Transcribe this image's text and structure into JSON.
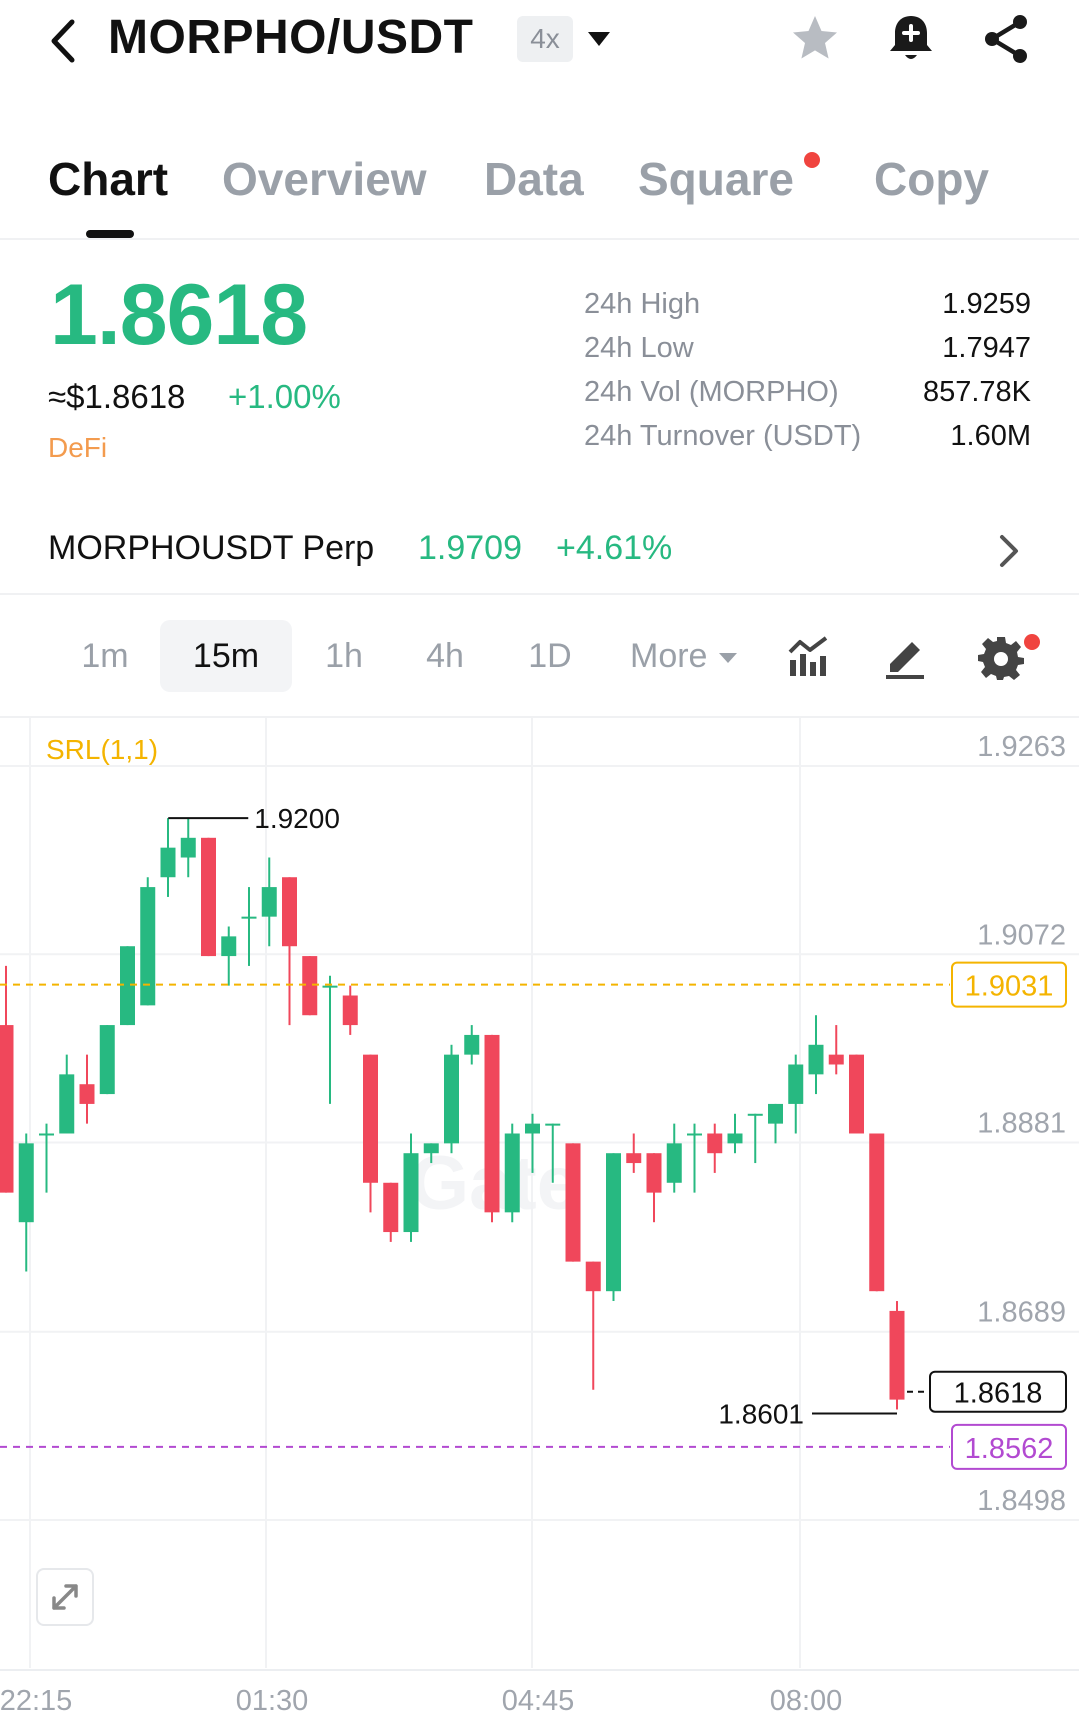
{
  "header": {
    "pair": "MORPHO/USDT",
    "leverage": "4x",
    "icons": [
      "back-chevron-icon",
      "caret-down-icon",
      "star-icon",
      "bell-plus-icon",
      "share-icon"
    ]
  },
  "tabs": [
    {
      "label": "Chart",
      "active": true
    },
    {
      "label": "Overview",
      "active": false
    },
    {
      "label": "Data",
      "active": false
    },
    {
      "label": "Square",
      "active": false,
      "badge": true
    },
    {
      "label": "Copy",
      "active": false
    }
  ],
  "ticker": {
    "last_price": "1.8618",
    "usd_price": "≈$1.8618",
    "change": "+1.00%",
    "tag": "DeFi",
    "up_color": "#27b981",
    "down_color": "#f0475b",
    "stats": [
      {
        "label": "24h High",
        "value": "1.9259"
      },
      {
        "label": "24h Low",
        "value": "1.7947"
      },
      {
        "label": "24h Vol (MORPHO)",
        "value": "857.78K"
      },
      {
        "label": "24h Turnover (USDT)",
        "value": "1.60M"
      }
    ]
  },
  "perp": {
    "name": "MORPHOUSDT Perp",
    "price": "1.9709",
    "change": "+4.61%"
  },
  "intervals": [
    {
      "label": "1m",
      "active": false
    },
    {
      "label": "15m",
      "active": true
    },
    {
      "label": "1h",
      "active": false
    },
    {
      "label": "4h",
      "active": false
    },
    {
      "label": "1D",
      "active": false
    },
    {
      "label": "More",
      "active": false
    }
  ],
  "tools": [
    "indicators-icon",
    "draw-pen-icon",
    "settings-gear-icon"
  ],
  "chart": {
    "indicator": "SRL(1,1)",
    "watermark": "Gate",
    "y_ticks": [
      "1.9263",
      "1.9072",
      "1.8881",
      "1.8689",
      "1.8498"
    ],
    "x_ticks": [
      "22:15",
      "01:30",
      "04:45",
      "08:00"
    ],
    "high_marker": "1.9200",
    "low_marker": "1.8601",
    "srl_line": "1.9031",
    "current_price": "1.8618",
    "srl_line2": "1.8562",
    "srl_color": "#f4b400",
    "srl2_color": "#b24ad1"
  },
  "chart_data": {
    "type": "candlestick",
    "ylim": [
      1.843,
      1.936
    ],
    "y_ticks": [
      1.9263,
      1.9072,
      1.8881,
      1.8689,
      1.8498
    ],
    "x_ticks": [
      "22:15",
      "01:30",
      "04:45",
      "08:00"
    ],
    "candles": [
      {
        "o": 1.899,
        "h": 1.905,
        "l": 1.882,
        "c": 1.882
      },
      {
        "o": 1.879,
        "h": 1.888,
        "l": 1.874,
        "c": 1.887
      },
      {
        "o": 1.888,
        "h": 1.889,
        "l": 1.882,
        "c": 1.888
      },
      {
        "o": 1.888,
        "h": 1.896,
        "l": 1.888,
        "c": 1.894
      },
      {
        "o": 1.893,
        "h": 1.896,
        "l": 1.889,
        "c": 1.891
      },
      {
        "o": 1.892,
        "h": 1.899,
        "l": 1.892,
        "c": 1.899
      },
      {
        "o": 1.899,
        "h": 1.907,
        "l": 1.899,
        "c": 1.907
      },
      {
        "o": 1.901,
        "h": 1.914,
        "l": 1.901,
        "c": 1.913
      },
      {
        "o": 1.914,
        "h": 1.92,
        "l": 1.912,
        "c": 1.917
      },
      {
        "o": 1.916,
        "h": 1.92,
        "l": 1.914,
        "c": 1.918
      },
      {
        "o": 1.918,
        "h": 1.918,
        "l": 1.906,
        "c": 1.906
      },
      {
        "o": 1.906,
        "h": 1.909,
        "l": 1.903,
        "c": 1.908
      },
      {
        "o": 1.91,
        "h": 1.913,
        "l": 1.905,
        "c": 1.91
      },
      {
        "o": 1.91,
        "h": 1.916,
        "l": 1.907,
        "c": 1.913
      },
      {
        "o": 1.914,
        "h": 1.914,
        "l": 1.899,
        "c": 1.907
      },
      {
        "o": 1.906,
        "h": 1.906,
        "l": 1.9,
        "c": 1.9
      },
      {
        "o": 1.903,
        "h": 1.904,
        "l": 1.891,
        "c": 1.903
      },
      {
        "o": 1.902,
        "h": 1.903,
        "l": 1.898,
        "c": 1.899
      },
      {
        "o": 1.896,
        "h": 1.896,
        "l": 1.88,
        "c": 1.883
      },
      {
        "o": 1.883,
        "h": 1.883,
        "l": 1.877,
        "c": 1.878
      },
      {
        "o": 1.878,
        "h": 1.888,
        "l": 1.877,
        "c": 1.886
      },
      {
        "o": 1.886,
        "h": 1.887,
        "l": 1.885,
        "c": 1.887
      },
      {
        "o": 1.887,
        "h": 1.897,
        "l": 1.886,
        "c": 1.896
      },
      {
        "o": 1.896,
        "h": 1.899,
        "l": 1.895,
        "c": 1.898
      },
      {
        "o": 1.898,
        "h": 1.898,
        "l": 1.879,
        "c": 1.88
      },
      {
        "o": 1.88,
        "h": 1.889,
        "l": 1.879,
        "c": 1.888
      },
      {
        "o": 1.888,
        "h": 1.89,
        "l": 1.884,
        "c": 1.889
      },
      {
        "o": 1.889,
        "h": 1.889,
        "l": 1.883,
        "c": 1.889
      },
      {
        "o": 1.887,
        "h": 1.887,
        "l": 1.875,
        "c": 1.875
      },
      {
        "o": 1.875,
        "h": 1.875,
        "l": 1.862,
        "c": 1.872
      },
      {
        "o": 1.872,
        "h": 1.886,
        "l": 1.871,
        "c": 1.886
      },
      {
        "o": 1.886,
        "h": 1.888,
        "l": 1.884,
        "c": 1.885
      },
      {
        "o": 1.886,
        "h": 1.886,
        "l": 1.879,
        "c": 1.882
      },
      {
        "o": 1.883,
        "h": 1.889,
        "l": 1.882,
        "c": 1.887
      },
      {
        "o": 1.888,
        "h": 1.889,
        "l": 1.882,
        "c": 1.888
      },
      {
        "o": 1.888,
        "h": 1.889,
        "l": 1.884,
        "c": 1.886
      },
      {
        "o": 1.887,
        "h": 1.89,
        "l": 1.886,
        "c": 1.888
      },
      {
        "o": 1.89,
        "h": 1.89,
        "l": 1.885,
        "c": 1.89
      },
      {
        "o": 1.889,
        "h": 1.891,
        "l": 1.887,
        "c": 1.891
      },
      {
        "o": 1.891,
        "h": 1.896,
        "l": 1.888,
        "c": 1.895
      },
      {
        "o": 1.894,
        "h": 1.9,
        "l": 1.892,
        "c": 1.897
      },
      {
        "o": 1.896,
        "h": 1.899,
        "l": 1.894,
        "c": 1.895
      },
      {
        "o": 1.896,
        "h": 1.896,
        "l": 1.888,
        "c": 1.888
      },
      {
        "o": 1.888,
        "h": 1.888,
        "l": 1.872,
        "c": 1.872
      },
      {
        "o": 1.87,
        "h": 1.871,
        "l": 1.86,
        "c": 1.861
      }
    ]
  }
}
